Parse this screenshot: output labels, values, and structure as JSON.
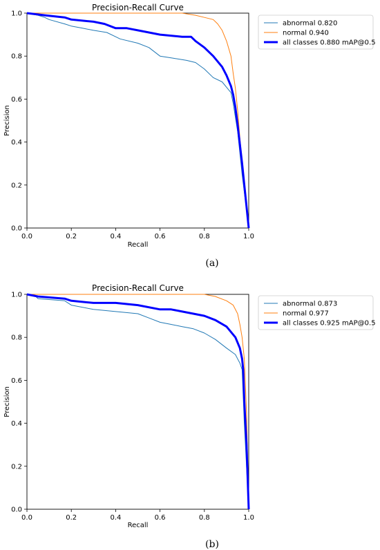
{
  "chart_data": [
    {
      "type": "line",
      "panel_label": "(a)",
      "title": "Precision-Recall Curve",
      "xlabel": "Recall",
      "ylabel": "Precision",
      "xlim": [
        0,
        1
      ],
      "ylim": [
        0,
        1
      ],
      "xticks": [
        "0.0",
        "0.2",
        "0.4",
        "0.6",
        "0.8",
        "1.0"
      ],
      "yticks": [
        "0.0",
        "0.2",
        "0.4",
        "0.6",
        "0.8",
        "1.0"
      ],
      "grid": false,
      "legend_position": "outside-right-top",
      "series": [
        {
          "name": "abnormal 0.820",
          "color": "#1f77b4",
          "width": "thin",
          "x": [
            0,
            0.05,
            0.08,
            0.1,
            0.17,
            0.2,
            0.25,
            0.3,
            0.36,
            0.4,
            0.42,
            0.5,
            0.55,
            0.6,
            0.66,
            0.72,
            0.76,
            0.8,
            0.84,
            0.88,
            0.92,
            0.93,
            0.95,
            0.97,
            1.0
          ],
          "y": [
            1.0,
            0.99,
            0.98,
            0.97,
            0.95,
            0.94,
            0.93,
            0.92,
            0.91,
            0.89,
            0.88,
            0.86,
            0.84,
            0.8,
            0.79,
            0.78,
            0.77,
            0.74,
            0.7,
            0.68,
            0.63,
            0.58,
            0.45,
            0.25,
            0.0
          ]
        },
        {
          "name": "normal 0.940",
          "color": "#ff7f0e",
          "width": "thin",
          "x": [
            0,
            0.4,
            0.6,
            0.7,
            0.76,
            0.8,
            0.84,
            0.86,
            0.88,
            0.9,
            0.92,
            0.93,
            0.94,
            0.95,
            0.96,
            0.98,
            1.0
          ],
          "y": [
            1.0,
            1.0,
            1.0,
            1.0,
            0.99,
            0.98,
            0.97,
            0.95,
            0.92,
            0.87,
            0.8,
            0.72,
            0.65,
            0.55,
            0.42,
            0.2,
            0.0
          ]
        },
        {
          "name": "all classes 0.880 mAP@0.5",
          "color": "#0000ff",
          "width": "thick",
          "x": [
            0,
            0.08,
            0.17,
            0.2,
            0.3,
            0.35,
            0.4,
            0.45,
            0.5,
            0.55,
            0.6,
            0.7,
            0.74,
            0.76,
            0.8,
            0.84,
            0.88,
            0.9,
            0.92,
            0.93,
            0.94,
            0.95,
            0.97,
            1.0
          ],
          "y": [
            1.0,
            0.99,
            0.98,
            0.97,
            0.96,
            0.95,
            0.93,
            0.93,
            0.92,
            0.91,
            0.9,
            0.89,
            0.89,
            0.87,
            0.84,
            0.8,
            0.75,
            0.71,
            0.66,
            0.62,
            0.56,
            0.48,
            0.3,
            0.0
          ]
        }
      ]
    },
    {
      "type": "line",
      "panel_label": "(b)",
      "title": "Precision-Recall Curve",
      "xlabel": "Recall",
      "ylabel": "Precision",
      "xlim": [
        0,
        1
      ],
      "ylim": [
        0,
        1
      ],
      "xticks": [
        "0.0",
        "0.2",
        "0.4",
        "0.6",
        "0.8",
        "1.0"
      ],
      "yticks": [
        "0.0",
        "0.2",
        "0.4",
        "0.6",
        "0.8",
        "1.0"
      ],
      "grid": false,
      "legend_position": "outside-right-top",
      "series": [
        {
          "name": "abnormal 0.873",
          "color": "#1f77b4",
          "width": "thin",
          "x": [
            0,
            0.04,
            0.05,
            0.17,
            0.2,
            0.3,
            0.4,
            0.5,
            0.55,
            0.6,
            0.65,
            0.7,
            0.75,
            0.8,
            0.85,
            0.9,
            0.94,
            0.95,
            0.96,
            0.97,
            0.98,
            0.99,
            1.0
          ],
          "y": [
            1.0,
            0.99,
            0.98,
            0.97,
            0.95,
            0.93,
            0.92,
            0.91,
            0.89,
            0.87,
            0.86,
            0.85,
            0.84,
            0.82,
            0.79,
            0.75,
            0.72,
            0.7,
            0.68,
            0.65,
            0.4,
            0.2,
            0.0
          ]
        },
        {
          "name": "normal 0.977",
          "color": "#ff7f0e",
          "width": "thin",
          "x": [
            0,
            0.5,
            0.7,
            0.8,
            0.85,
            0.9,
            0.93,
            0.95,
            0.96,
            0.97,
            0.98,
            0.99,
            1.0
          ],
          "y": [
            1.0,
            1.0,
            1.0,
            1.0,
            0.99,
            0.97,
            0.95,
            0.91,
            0.86,
            0.8,
            0.7,
            0.45,
            0.0
          ]
        },
        {
          "name": "all classes 0.925 mAP@0.5",
          "color": "#0000ff",
          "width": "thick",
          "x": [
            0,
            0.05,
            0.17,
            0.2,
            0.3,
            0.4,
            0.5,
            0.6,
            0.65,
            0.7,
            0.75,
            0.8,
            0.85,
            0.9,
            0.94,
            0.96,
            0.97,
            0.975,
            0.98,
            0.99,
            1.0
          ],
          "y": [
            1.0,
            0.99,
            0.98,
            0.97,
            0.96,
            0.96,
            0.95,
            0.93,
            0.93,
            0.92,
            0.91,
            0.9,
            0.88,
            0.85,
            0.8,
            0.75,
            0.7,
            0.65,
            0.5,
            0.3,
            0.0
          ]
        }
      ]
    }
  ]
}
